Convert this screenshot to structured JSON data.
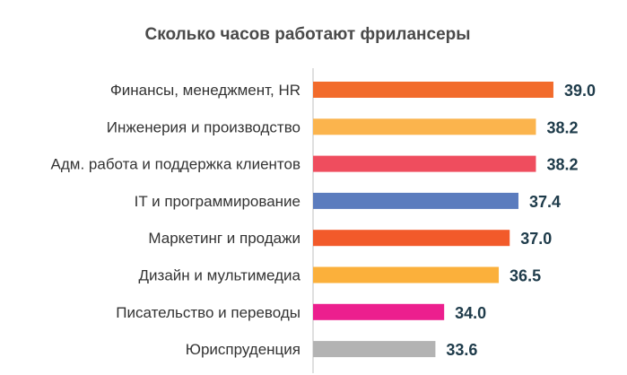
{
  "chart_data": {
    "type": "bar",
    "orientation": "horizontal",
    "title": "Сколько часов работают фрилансеры",
    "xlabel": "",
    "ylabel": "",
    "categories": [
      "Финансы, менеджмент, HR",
      "Инженерия и производство",
      "Адм. работа и поддержка клиентов",
      "IT и программирование",
      "Маркетинг и продажи",
      "Дизайн и мультимедиа",
      "Писательство и переводы",
      "Юриспруденция"
    ],
    "values": [
      39.0,
      38.2,
      38.2,
      37.4,
      37.0,
      36.5,
      34.0,
      33.6
    ],
    "value_labels": [
      "39.0",
      "38.2",
      "38.2",
      "37.4",
      "37.0",
      "36.5",
      "34.0",
      "33.6"
    ],
    "bar_colors": [
      "#f26b2b",
      "#fbb44d",
      "#ef4d5e",
      "#5b7cbe",
      "#f25a2a",
      "#fbb03b",
      "#ec1f8e",
      "#b3b3b3"
    ],
    "xlim": [
      28,
      39.7
    ],
    "grid": false,
    "legend": "none"
  }
}
